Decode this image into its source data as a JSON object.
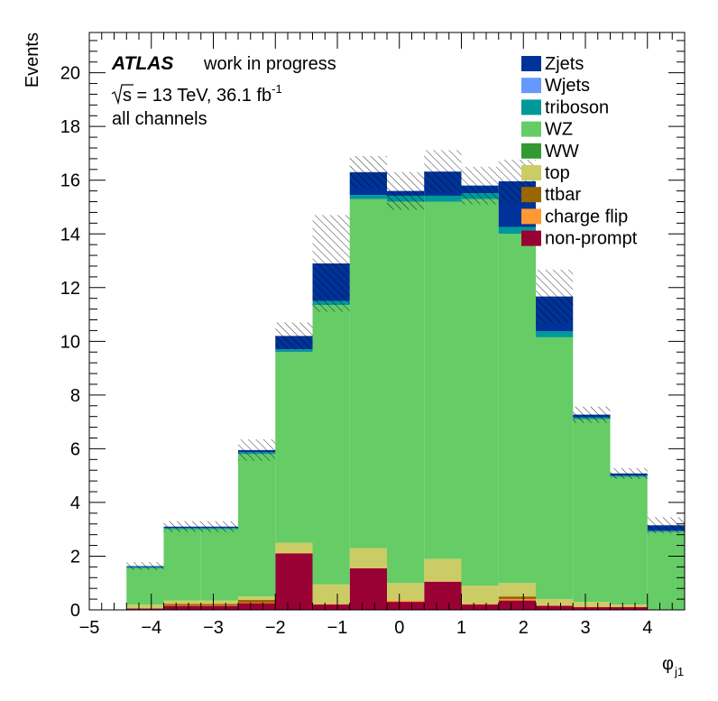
{
  "chart_data": {
    "type": "bar",
    "stacked": true,
    "ylabel": "Events",
    "xlabel_main": "φ",
    "xlabel_sub": "j1",
    "xlim": [
      -5,
      4.6
    ],
    "ylim": [
      0,
      21.5
    ],
    "x_ticks": [
      "−5",
      "−4",
      "−3",
      "−2",
      "−1",
      "0",
      "1",
      "2",
      "3",
      "4"
    ],
    "y_ticks": [
      "0",
      "2",
      "4",
      "6",
      "8",
      "10",
      "12",
      "14",
      "16",
      "18",
      "20"
    ],
    "bin_edges": [
      -4.4,
      -3.8,
      -3.2,
      -2.6,
      -2.0,
      -1.4,
      -0.8,
      -0.2,
      0.4,
      1.0,
      1.6,
      2.2,
      2.8,
      3.4,
      4.0,
      4.6
    ],
    "series": [
      {
        "name": "non-prompt",
        "color": "#990033",
        "values": [
          0.05,
          0.15,
          0.15,
          0.25,
          2.1,
          0.2,
          1.55,
          0.3,
          1.05,
          0.2,
          0.35,
          0.15,
          0.1,
          0.1,
          0.0
        ]
      },
      {
        "name": "charge flip",
        "color": "#ff9933",
        "values": [
          0.0,
          0.02,
          0.02,
          0.02,
          0.02,
          0.02,
          0.02,
          0.05,
          0.02,
          0.02,
          0.05,
          0.02,
          0.02,
          0.02,
          0.0
        ]
      },
      {
        "name": "ttbar",
        "color": "#996600",
        "values": [
          0.0,
          0.05,
          0.05,
          0.1,
          0.0,
          0.0,
          0.0,
          0.0,
          0.0,
          0.0,
          0.1,
          0.0,
          0.0,
          0.0,
          0.0
        ]
      },
      {
        "name": "top",
        "color": "#cccc66",
        "values": [
          0.15,
          0.13,
          0.13,
          0.13,
          0.38,
          0.73,
          0.73,
          0.65,
          0.83,
          0.68,
          0.5,
          0.23,
          0.18,
          0.08,
          0.0
        ]
      },
      {
        "name": "WW",
        "color": "#339933",
        "values": [
          0.0,
          0.0,
          0.0,
          0.0,
          0.0,
          0.0,
          0.0,
          0.0,
          0.0,
          0.0,
          0.0,
          0.0,
          0.0,
          0.0,
          0.0
        ]
      },
      {
        "name": "WZ",
        "color": "#66cc66",
        "values": [
          1.35,
          2.65,
          2.65,
          5.3,
          7.1,
          10.4,
          13.0,
          14.2,
          13.3,
          14.4,
          13.0,
          9.75,
          6.8,
          4.75,
          2.9
        ]
      },
      {
        "name": "triboson",
        "color": "#009999",
        "values": [
          0.05,
          0.05,
          0.05,
          0.07,
          0.1,
          0.15,
          0.15,
          0.22,
          0.22,
          0.22,
          0.26,
          0.22,
          0.07,
          0.05,
          0.05
        ]
      },
      {
        "name": "Wjets",
        "color": "#6699ff",
        "values": [
          0.0,
          0.0,
          0.0,
          0.0,
          0.0,
          0.0,
          0.0,
          0.0,
          0.0,
          0.0,
          0.0,
          0.0,
          0.0,
          0.0,
          0.0
        ]
      },
      {
        "name": "Zjets",
        "color": "#003399",
        "values": [
          0.03,
          0.05,
          0.05,
          0.08,
          0.5,
          1.4,
          0.85,
          0.18,
          0.9,
          0.28,
          1.7,
          1.3,
          0.1,
          0.08,
          0.2
        ]
      }
    ],
    "uncertainty": [
      0.15,
      0.2,
      0.2,
      0.4,
      0.5,
      1.8,
      0.6,
      0.7,
      0.8,
      0.7,
      0.8,
      1.0,
      0.3,
      0.2,
      0.3
    ],
    "legend_order": [
      "Zjets",
      "Wjets",
      "triboson",
      "WZ",
      "WW",
      "top",
      "ttbar",
      "charge flip",
      "non-prompt"
    ],
    "legend_position": "top-right",
    "annotations": {
      "experiment": "ATLAS",
      "status": "work in progress",
      "energy_text": "s = 13 TeV, 36.1 fb",
      "energy_sup": "-1",
      "channel": "all channels"
    }
  }
}
